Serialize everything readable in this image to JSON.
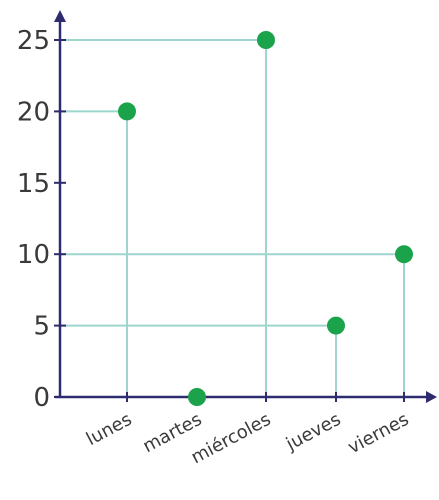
{
  "colors": {
    "axis": "#2e2b6e",
    "guide": "#9ed6cf",
    "point": "#1aa34a",
    "text": "#3a3a3a"
  },
  "chart_data": {
    "type": "scatter",
    "categories": [
      "lunes",
      "martes",
      "miércoles",
      "jueves",
      "viernes"
    ],
    "values": [
      20,
      0,
      25,
      5,
      10
    ],
    "ylim": [
      0,
      25
    ],
    "y_ticks": [
      "0",
      "5",
      "10",
      "15",
      "20",
      "25"
    ],
    "grid": false,
    "guide_lines": true
  }
}
